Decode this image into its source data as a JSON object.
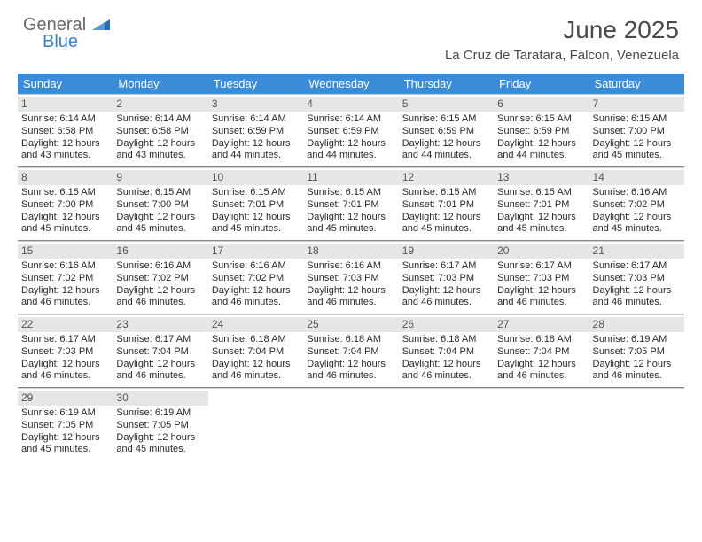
{
  "brand": {
    "line1": "General",
    "line2": "Blue"
  },
  "title": "June 2025",
  "location": "La Cruz de Taratara, Falcon, Venezuela",
  "colors": {
    "header_bg": "#3a8bd8",
    "header_text": "#ffffff",
    "daynum_bg": "#e6e6e6",
    "daynum_text": "#555555",
    "body_text": "#2a2a2a",
    "rule": "#888888",
    "brand_gray": "#6a6a6a",
    "brand_blue": "#3a7fc4"
  },
  "weekdays": [
    "Sunday",
    "Monday",
    "Tuesday",
    "Wednesday",
    "Thursday",
    "Friday",
    "Saturday"
  ],
  "layout": {
    "columns": 7,
    "first_weekday_index": 0,
    "days_in_month": 30
  },
  "days": [
    {
      "n": 1,
      "sunrise": "6:14 AM",
      "sunset": "6:58 PM",
      "daylight": "12 hours and 43 minutes."
    },
    {
      "n": 2,
      "sunrise": "6:14 AM",
      "sunset": "6:58 PM",
      "daylight": "12 hours and 43 minutes."
    },
    {
      "n": 3,
      "sunrise": "6:14 AM",
      "sunset": "6:59 PM",
      "daylight": "12 hours and 44 minutes."
    },
    {
      "n": 4,
      "sunrise": "6:14 AM",
      "sunset": "6:59 PM",
      "daylight": "12 hours and 44 minutes."
    },
    {
      "n": 5,
      "sunrise": "6:15 AM",
      "sunset": "6:59 PM",
      "daylight": "12 hours and 44 minutes."
    },
    {
      "n": 6,
      "sunrise": "6:15 AM",
      "sunset": "6:59 PM",
      "daylight": "12 hours and 44 minutes."
    },
    {
      "n": 7,
      "sunrise": "6:15 AM",
      "sunset": "7:00 PM",
      "daylight": "12 hours and 45 minutes."
    },
    {
      "n": 8,
      "sunrise": "6:15 AM",
      "sunset": "7:00 PM",
      "daylight": "12 hours and 45 minutes."
    },
    {
      "n": 9,
      "sunrise": "6:15 AM",
      "sunset": "7:00 PM",
      "daylight": "12 hours and 45 minutes."
    },
    {
      "n": 10,
      "sunrise": "6:15 AM",
      "sunset": "7:01 PM",
      "daylight": "12 hours and 45 minutes."
    },
    {
      "n": 11,
      "sunrise": "6:15 AM",
      "sunset": "7:01 PM",
      "daylight": "12 hours and 45 minutes."
    },
    {
      "n": 12,
      "sunrise": "6:15 AM",
      "sunset": "7:01 PM",
      "daylight": "12 hours and 45 minutes."
    },
    {
      "n": 13,
      "sunrise": "6:15 AM",
      "sunset": "7:01 PM",
      "daylight": "12 hours and 45 minutes."
    },
    {
      "n": 14,
      "sunrise": "6:16 AM",
      "sunset": "7:02 PM",
      "daylight": "12 hours and 45 minutes."
    },
    {
      "n": 15,
      "sunrise": "6:16 AM",
      "sunset": "7:02 PM",
      "daylight": "12 hours and 46 minutes."
    },
    {
      "n": 16,
      "sunrise": "6:16 AM",
      "sunset": "7:02 PM",
      "daylight": "12 hours and 46 minutes."
    },
    {
      "n": 17,
      "sunrise": "6:16 AM",
      "sunset": "7:02 PM",
      "daylight": "12 hours and 46 minutes."
    },
    {
      "n": 18,
      "sunrise": "6:16 AM",
      "sunset": "7:03 PM",
      "daylight": "12 hours and 46 minutes."
    },
    {
      "n": 19,
      "sunrise": "6:17 AM",
      "sunset": "7:03 PM",
      "daylight": "12 hours and 46 minutes."
    },
    {
      "n": 20,
      "sunrise": "6:17 AM",
      "sunset": "7:03 PM",
      "daylight": "12 hours and 46 minutes."
    },
    {
      "n": 21,
      "sunrise": "6:17 AM",
      "sunset": "7:03 PM",
      "daylight": "12 hours and 46 minutes."
    },
    {
      "n": 22,
      "sunrise": "6:17 AM",
      "sunset": "7:03 PM",
      "daylight": "12 hours and 46 minutes."
    },
    {
      "n": 23,
      "sunrise": "6:17 AM",
      "sunset": "7:04 PM",
      "daylight": "12 hours and 46 minutes."
    },
    {
      "n": 24,
      "sunrise": "6:18 AM",
      "sunset": "7:04 PM",
      "daylight": "12 hours and 46 minutes."
    },
    {
      "n": 25,
      "sunrise": "6:18 AM",
      "sunset": "7:04 PM",
      "daylight": "12 hours and 46 minutes."
    },
    {
      "n": 26,
      "sunrise": "6:18 AM",
      "sunset": "7:04 PM",
      "daylight": "12 hours and 46 minutes."
    },
    {
      "n": 27,
      "sunrise": "6:18 AM",
      "sunset": "7:04 PM",
      "daylight": "12 hours and 46 minutes."
    },
    {
      "n": 28,
      "sunrise": "6:19 AM",
      "sunset": "7:05 PM",
      "daylight": "12 hours and 46 minutes."
    },
    {
      "n": 29,
      "sunrise": "6:19 AM",
      "sunset": "7:05 PM",
      "daylight": "12 hours and 45 minutes."
    },
    {
      "n": 30,
      "sunrise": "6:19 AM",
      "sunset": "7:05 PM",
      "daylight": "12 hours and 45 minutes."
    }
  ],
  "labels": {
    "sunrise": "Sunrise:",
    "sunset": "Sunset:",
    "daylight": "Daylight:"
  }
}
